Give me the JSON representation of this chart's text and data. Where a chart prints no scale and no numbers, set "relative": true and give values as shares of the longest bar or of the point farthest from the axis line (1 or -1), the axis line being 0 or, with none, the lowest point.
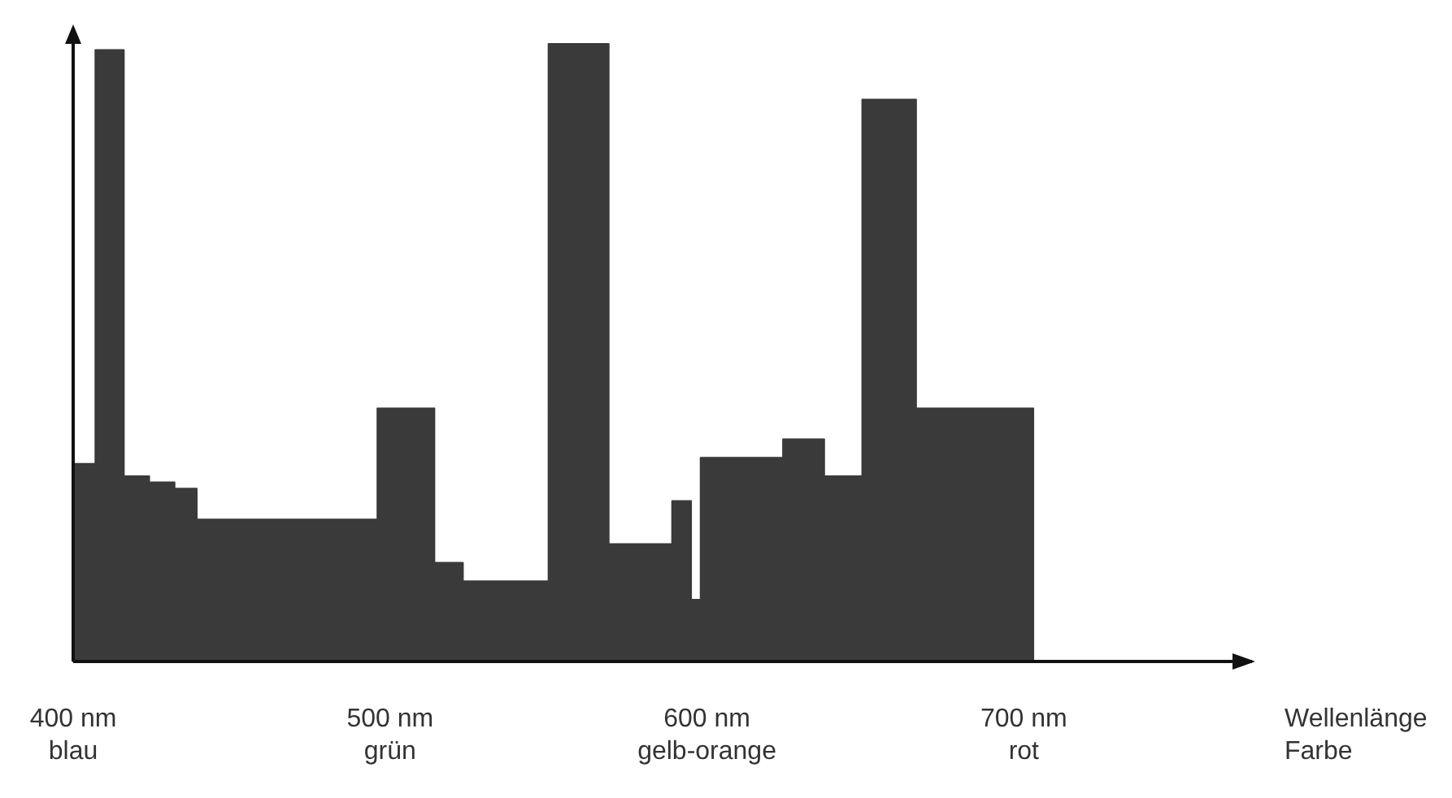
{
  "chart_data": {
    "type": "area",
    "relative": true,
    "color": "#3a3a3a",
    "x": [
      400,
      407,
      407,
      416,
      416,
      424,
      424,
      432,
      432,
      439,
      439,
      496,
      496,
      514,
      514,
      523,
      523,
      550,
      550,
      569,
      569,
      589,
      589,
      595,
      595,
      598,
      598,
      624,
      624,
      637,
      637,
      649,
      649,
      666,
      666,
      703
    ],
    "values": [
      0.32,
      0.32,
      0.99,
      0.99,
      0.3,
      0.3,
      0.29,
      0.29,
      0.28,
      0.28,
      0.23,
      0.23,
      0.41,
      0.41,
      0.16,
      0.16,
      0.13,
      0.13,
      1,
      1,
      0.19,
      0.19,
      0.26,
      0.26,
      0.1,
      0.1,
      0.33,
      0.33,
      0.36,
      0.36,
      0.3,
      0.3,
      0.91,
      0.91,
      0.41,
      0.41
    ],
    "xlim": [
      400,
      772
    ],
    "xticks": [
      {
        "value": 400,
        "label": "400 nm"
      },
      {
        "value": 500,
        "label": "500 nm"
      },
      {
        "value": 600,
        "label": "600 nm"
      },
      {
        "value": 700,
        "label": "700 nm"
      }
    ],
    "xlabel": "Wellenlänge",
    "annotations": [
      "blau",
      "grün",
      "gelb-orange",
      "rot",
      "Farbe"
    ]
  }
}
